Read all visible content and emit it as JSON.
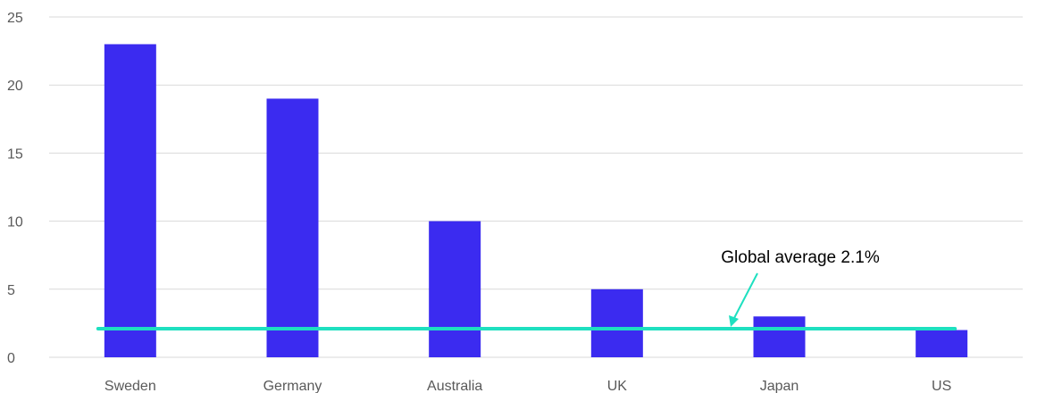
{
  "chart_data": {
    "type": "bar",
    "title": "",
    "xlabel": "",
    "ylabel": "",
    "categories": [
      "Sweden",
      "Germany",
      "Australia",
      "UK",
      "Japan",
      "US"
    ],
    "values": [
      23,
      19,
      10,
      5,
      3,
      2
    ],
    "ylim": [
      0,
      25
    ],
    "yticks": [
      "0",
      "5",
      "10",
      "15",
      "20",
      "25"
    ],
    "grid": true,
    "reference_line": {
      "value": 2.1,
      "label": "Global average 2.1%"
    },
    "colors": {
      "bar": "#3b2bf0",
      "reference_line": "#1ee0c0",
      "grid": "#d9d9d9"
    }
  }
}
